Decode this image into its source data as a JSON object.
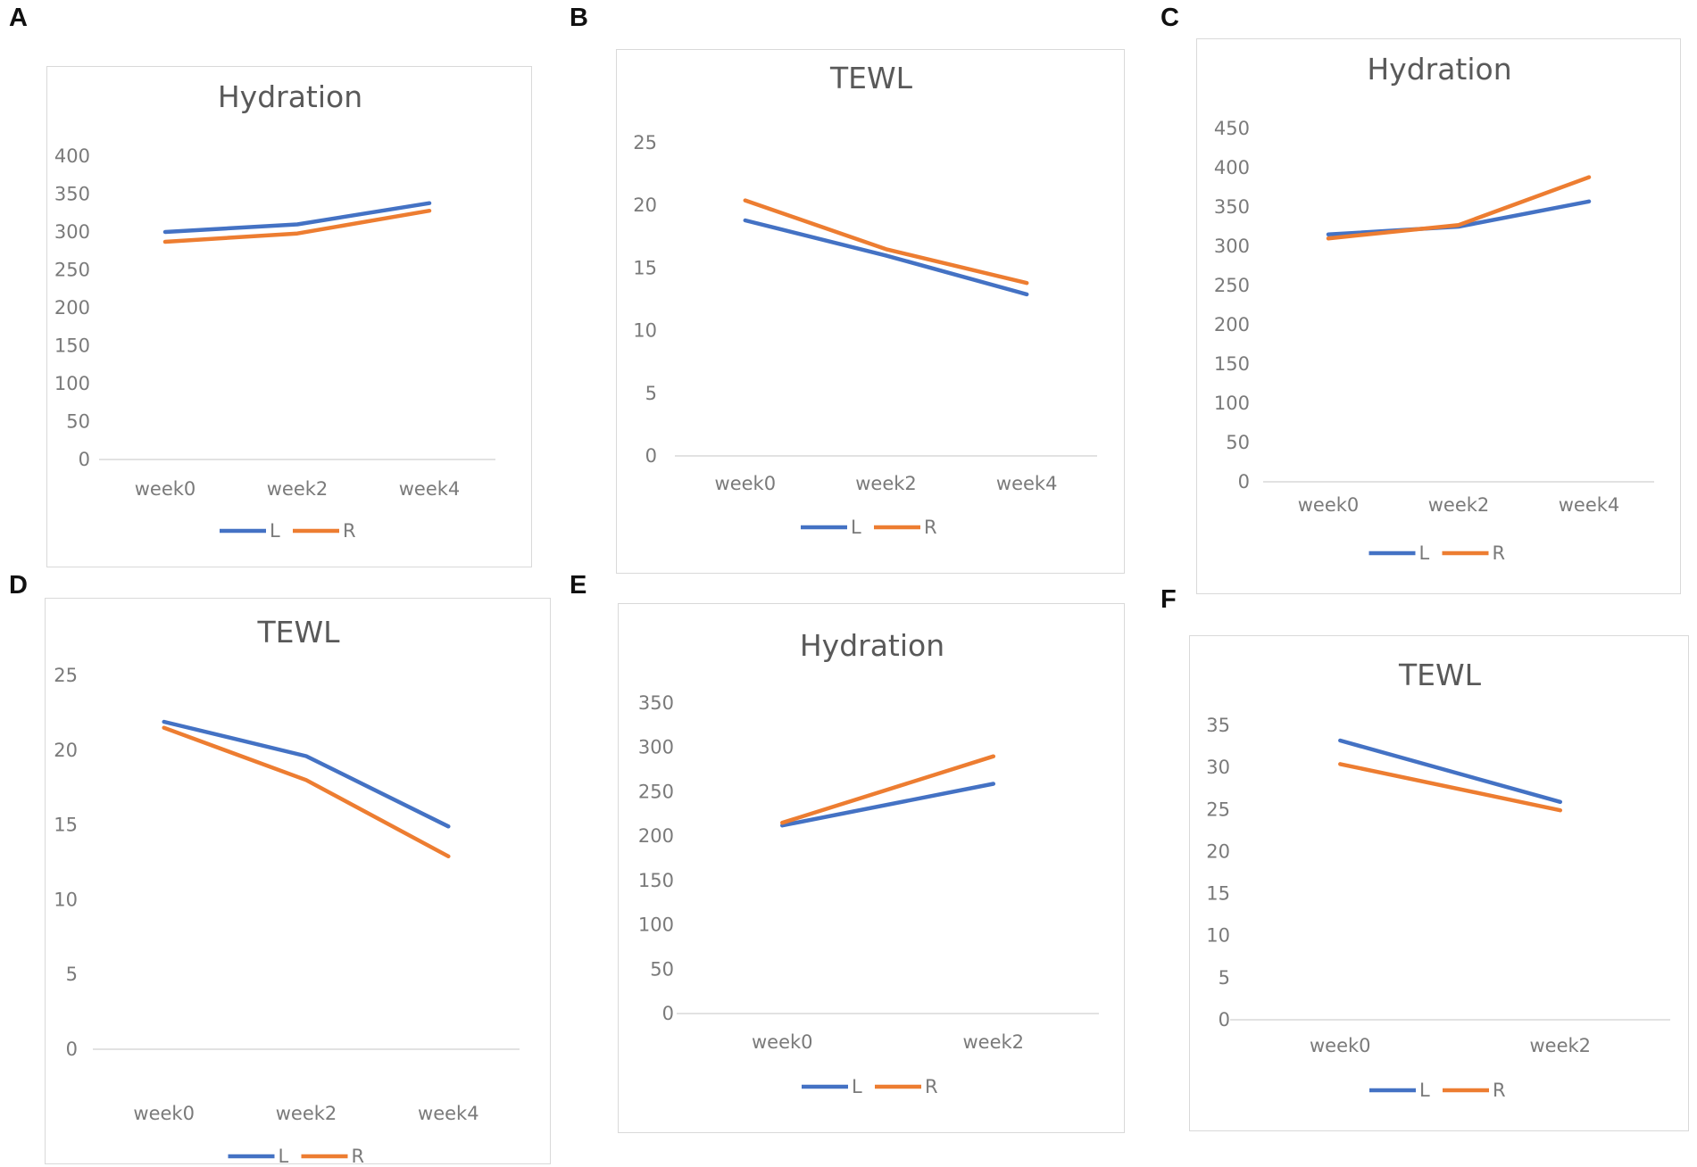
{
  "colors": {
    "L": "#4472c4",
    "R": "#ed7d31",
    "axis": "#d9d9d9",
    "text": "#595959"
  },
  "panels": [
    {
      "label": "A"
    },
    {
      "label": "B"
    },
    {
      "label": "C"
    },
    {
      "label": "D"
    },
    {
      "label": "E"
    },
    {
      "label": "F"
    }
  ],
  "chart_data": [
    {
      "panel": "A",
      "type": "line",
      "title": "Hydration",
      "categories": [
        "week0",
        "week2",
        "week4"
      ],
      "yticks": [
        "0",
        "50",
        "100",
        "150",
        "200",
        "250",
        "300",
        "350",
        "400"
      ],
      "ylim": [
        0,
        400
      ],
      "series": [
        {
          "name": "L",
          "values": [
            300,
            310,
            338
          ]
        },
        {
          "name": "R",
          "values": [
            287,
            298,
            328
          ]
        }
      ]
    },
    {
      "panel": "B",
      "type": "line",
      "title": "TEWL",
      "categories": [
        "week0",
        "week2",
        "week4"
      ],
      "yticks": [
        "0",
        "5",
        "10",
        "15",
        "20",
        "25"
      ],
      "ylim": [
        0,
        25
      ],
      "series": [
        {
          "name": "L",
          "values": [
            18.8,
            16.0,
            12.9
          ]
        },
        {
          "name": "R",
          "values": [
            20.4,
            16.5,
            13.8
          ]
        }
      ]
    },
    {
      "panel": "C",
      "type": "line",
      "title": "Hydration",
      "categories": [
        "week0",
        "week2",
        "week4"
      ],
      "yticks": [
        "0",
        "50",
        "100",
        "150",
        "200",
        "250",
        "300",
        "350",
        "400",
        "450"
      ],
      "ylim": [
        0,
        450
      ],
      "series": [
        {
          "name": "L",
          "values": [
            315,
            325,
            357
          ]
        },
        {
          "name": "R",
          "values": [
            310,
            327,
            388
          ]
        }
      ]
    },
    {
      "panel": "D",
      "type": "line",
      "title": "TEWL",
      "categories": [
        "week0",
        "week2",
        "week4"
      ],
      "yticks": [
        "0",
        "5",
        "10",
        "15",
        "20",
        "25"
      ],
      "ylim": [
        0,
        25
      ],
      "series": [
        {
          "name": "L",
          "values": [
            21.9,
            19.6,
            14.9
          ]
        },
        {
          "name": "R",
          "values": [
            21.5,
            18.0,
            12.9
          ]
        }
      ]
    },
    {
      "panel": "E",
      "type": "line",
      "title": "Hydration",
      "categories": [
        "week0",
        "week2"
      ],
      "yticks": [
        "0",
        "50",
        "100",
        "150",
        "200",
        "250",
        "300",
        "350"
      ],
      "ylim": [
        0,
        350
      ],
      "series": [
        {
          "name": "L",
          "values": [
            212,
            259
          ]
        },
        {
          "name": "R",
          "values": [
            215,
            290
          ]
        }
      ]
    },
    {
      "panel": "F",
      "type": "line",
      "title": "TEWL",
      "categories": [
        "week0",
        "week2"
      ],
      "yticks": [
        "0",
        "5",
        "10",
        "15",
        "20",
        "25",
        "30",
        "35"
      ],
      "ylim": [
        0,
        35
      ],
      "series": [
        {
          "name": "L",
          "values": [
            33.2,
            25.9
          ]
        },
        {
          "name": "R",
          "values": [
            30.4,
            24.9
          ]
        }
      ]
    }
  ]
}
